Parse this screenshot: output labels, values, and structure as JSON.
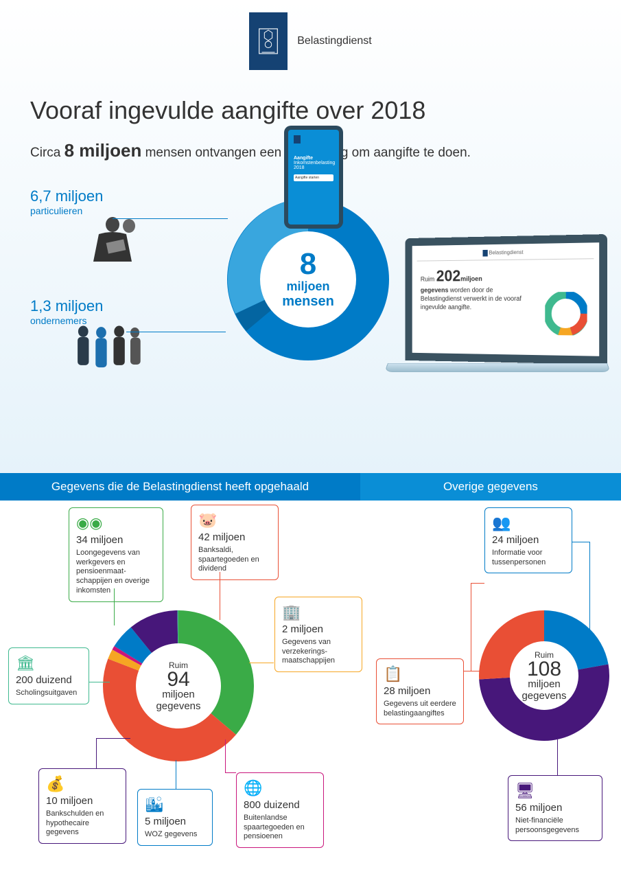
{
  "header": {
    "brand": "Belastingdienst"
  },
  "title": "Vooraf ingevulde aangifte over 2018",
  "intro": {
    "prefix": "Circa ",
    "emph": "8 miljoen",
    "suffix": " mensen ontvangen een uitnodiging om aangifte te doen."
  },
  "main_donut": {
    "type": "donut",
    "colors": {
      "ring_outer": "#007bc7",
      "ring_inner": "#0a8ed6",
      "slice_a": "#007bc7",
      "slice_b": "#39a6de",
      "bg": "#ffffff"
    },
    "slices": [
      {
        "label": "particulieren",
        "value_text": "6,7 miljoen",
        "value": 6.7,
        "color": "#007bc7"
      },
      {
        "label": "ondernemers",
        "value_text": "1,3 miljoen",
        "value": 1.3,
        "color": "#39a6de"
      }
    ],
    "center": {
      "number": "8",
      "unit": "miljoen",
      "label": "mensen"
    }
  },
  "laptop": {
    "prefix": "Ruim ",
    "big": "202",
    "unit": "miljoen",
    "bold2": "gegevens",
    "rest": " worden door de Belastingdienst verwerkt in de vooraf ingevulde aangifte.",
    "mini_donut_colors": [
      "#007bc7",
      "#3fb98f",
      "#e94f35",
      "#f6a623",
      "#3fb98f"
    ]
  },
  "phone": {
    "title": "Aangifte",
    "sub1": "Inkomstenbelasting",
    "sub2": "2018",
    "button": "Aangifte starten"
  },
  "sections": {
    "left_title": "Gegevens die de Belastingdienst heeft opgehaald",
    "right_title": "Overige gegevens"
  },
  "left_chart": {
    "type": "donut",
    "center": {
      "prefix": "Ruim",
      "number": "94",
      "unit": "miljoen",
      "label": "gegevens"
    },
    "total": 94,
    "background": "#ffffff",
    "items": [
      {
        "key": "loon",
        "value_text": "34 miljoen",
        "value": 34,
        "desc": "Loongegevens van werkgevers en pensioenmaat­schappijen en overige inkomsten",
        "icon": "coins",
        "color": "#3aab47"
      },
      {
        "key": "bank",
        "value_text": "42 miljoen",
        "value": 42,
        "desc": "Banksaldi, spaartegoeden en dividend",
        "icon": "piggy",
        "color": "#e94f35"
      },
      {
        "key": "verzek",
        "value_text": "2 miljoen",
        "value": 2,
        "desc": "Gegevens van verzekerings­maatschappijen",
        "icon": "building",
        "color": "#f6a623"
      },
      {
        "key": "buitl",
        "value_text": "800 duizend",
        "value": 0.8,
        "desc": "Buitenlandse spaartegoeden en pensioenen",
        "icon": "globe",
        "color": "#c9157c"
      },
      {
        "key": "woz",
        "value_text": "5 miljoen",
        "value": 5,
        "desc": "WOZ gegevens",
        "icon": "building2",
        "color": "#007bc7"
      },
      {
        "key": "schuld",
        "value_text": "10 miljoen",
        "value": 10,
        "desc": "Bankschulden en hypothecaire gegevens",
        "icon": "moneybag",
        "color": "#47177a"
      },
      {
        "key": "school",
        "value_text": "200 duizend",
        "value": 0.2,
        "desc": "Scholingsuitgaven",
        "icon": "school",
        "color": "#3fb98f"
      }
    ]
  },
  "right_chart": {
    "type": "donut",
    "center": {
      "prefix": "Ruim",
      "number": "108",
      "unit": "miljoen",
      "label": "gegevens"
    },
    "total": 108,
    "background": "#ffffff",
    "items": [
      {
        "key": "tussen",
        "value_text": "24 miljoen",
        "value": 24,
        "desc": "Informatie voor tussenpersonen",
        "icon": "people",
        "color": "#007bc7"
      },
      {
        "key": "persoon",
        "value_text": "56 miljoen",
        "value": 56,
        "desc": "Niet-financiële persoonsgegevens",
        "icon": "monitor",
        "color": "#47177a"
      },
      {
        "key": "eerder",
        "value_text": "28 miljoen",
        "value": 28,
        "desc": "Gegevens uit eerdere belastingaangiftes",
        "icon": "clipboard",
        "color": "#e94f35"
      }
    ]
  },
  "icons": {
    "coins": "◉",
    "piggy": "🐷",
    "building": "🏢",
    "globe": "🌐",
    "building2": "🏙",
    "moneybag": "💰",
    "school": "🏛",
    "people": "👥",
    "monitor": "🖥",
    "clipboard": "📋"
  }
}
